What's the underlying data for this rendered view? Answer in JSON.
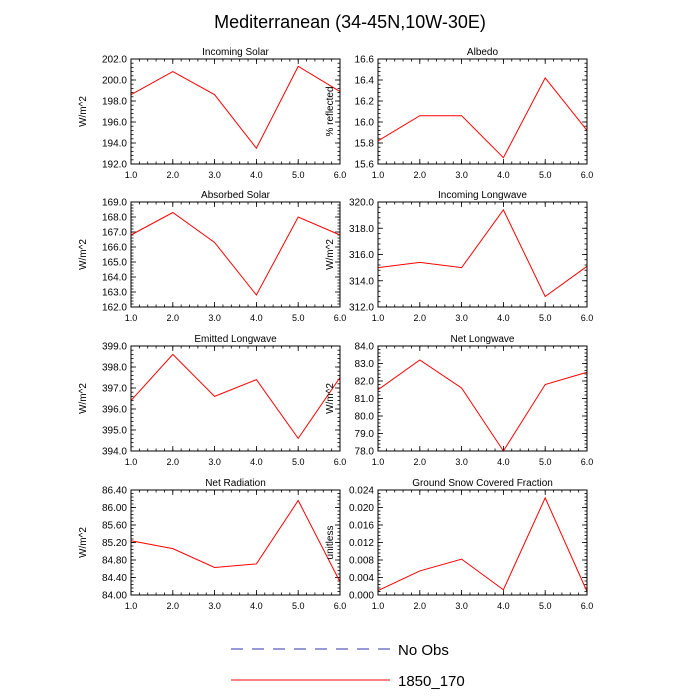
{
  "title": "Mediterranean (34-45N,10W-30E)",
  "colors": {
    "model_line": "#ff0000",
    "obs_line": "#3333aa",
    "axis": "#000000"
  },
  "legend": {
    "entries": [
      {
        "label": "No Obs",
        "style": "dashed",
        "color": "#3333aa"
      },
      {
        "label": "1850_170",
        "style": "solid",
        "color": "#ff0000"
      }
    ]
  },
  "chart_data": [
    {
      "type": "line",
      "title": "Incoming Solar",
      "ylabel": "W/m^2",
      "x": [
        1,
        2,
        3,
        4,
        5,
        6
      ],
      "xlim": [
        1,
        6
      ],
      "xticks": [
        "1.0",
        "2.0",
        "3.0",
        "4.0",
        "5.0",
        "6.0"
      ],
      "ylim": [
        192,
        202
      ],
      "yticks": [
        "192.0",
        "194.0",
        "196.0",
        "198.0",
        "200.0",
        "202.0"
      ],
      "yticks_values": [
        192,
        194,
        196,
        198,
        200,
        202
      ],
      "series": [
        {
          "name": "1850_170",
          "values": [
            198.6,
            200.8,
            198.6,
            193.5,
            201.3,
            198.9
          ]
        }
      ]
    },
    {
      "type": "line",
      "title": "Albedo",
      "ylabel": "% reflected",
      "x": [
        1,
        2,
        3,
        4,
        5,
        6
      ],
      "xlim": [
        1,
        6
      ],
      "xticks": [
        "1.0",
        "2.0",
        "3.0",
        "4.0",
        "5.0",
        "6.0"
      ],
      "ylim": [
        15.6,
        16.6
      ],
      "yticks": [
        "15.6",
        "15.8",
        "16.0",
        "16.2",
        "16.4",
        "16.6"
      ],
      "yticks_values": [
        15.6,
        15.8,
        16.0,
        16.2,
        16.4,
        16.6
      ],
      "series": [
        {
          "name": "1850_170",
          "values": [
            15.82,
            16.06,
            16.06,
            15.66,
            16.42,
            15.92
          ]
        }
      ]
    },
    {
      "type": "line",
      "title": "Absorbed Solar",
      "ylabel": "W/m^2",
      "x": [
        1,
        2,
        3,
        4,
        5,
        6
      ],
      "xlim": [
        1,
        6
      ],
      "xticks": [
        "1.0",
        "2.0",
        "3.0",
        "4.0",
        "5.0",
        "6.0"
      ],
      "ylim": [
        162,
        169
      ],
      "yticks": [
        "162.0",
        "163.0",
        "164.0",
        "165.0",
        "166.0",
        "167.0",
        "168.0",
        "169.0"
      ],
      "yticks_values": [
        162,
        163,
        164,
        165,
        166,
        167,
        168,
        169
      ],
      "series": [
        {
          "name": "1850_170",
          "values": [
            166.8,
            168.3,
            166.3,
            162.8,
            168.0,
            166.8
          ]
        }
      ]
    },
    {
      "type": "line",
      "title": "Incoming Longwave",
      "ylabel": "W/m^2",
      "x": [
        1,
        2,
        3,
        4,
        5,
        6
      ],
      "xlim": [
        1,
        6
      ],
      "xticks": [
        "1.0",
        "2.0",
        "3.0",
        "4.0",
        "5.0",
        "6.0"
      ],
      "ylim": [
        312,
        320
      ],
      "yticks": [
        "312.0",
        "314.0",
        "316.0",
        "318.0",
        "320.0"
      ],
      "yticks_values": [
        312,
        314,
        316,
        318,
        320
      ],
      "series": [
        {
          "name": "1850_170",
          "values": [
            315.0,
            315.4,
            315.0,
            319.4,
            312.8,
            315.1
          ]
        }
      ]
    },
    {
      "type": "line",
      "title": "Emitted Longwave",
      "ylabel": "W/m^2",
      "x": [
        1,
        2,
        3,
        4,
        5,
        6
      ],
      "xlim": [
        1,
        6
      ],
      "xticks": [
        "1.0",
        "2.0",
        "3.0",
        "4.0",
        "5.0",
        "6.0"
      ],
      "ylim": [
        394,
        399
      ],
      "yticks": [
        "394.0",
        "395.0",
        "396.0",
        "397.0",
        "398.0",
        "399.0"
      ],
      "yticks_values": [
        394,
        395,
        396,
        397,
        398,
        399
      ],
      "series": [
        {
          "name": "1850_170",
          "values": [
            396.4,
            398.6,
            396.6,
            397.4,
            394.6,
            397.5
          ]
        }
      ]
    },
    {
      "type": "line",
      "title": "Net Longwave",
      "ylabel": "W/m^2",
      "x": [
        1,
        2,
        3,
        4,
        5,
        6
      ],
      "xlim": [
        1,
        6
      ],
      "xticks": [
        "1.0",
        "2.0",
        "3.0",
        "4.0",
        "5.0",
        "6.0"
      ],
      "ylim": [
        78,
        84
      ],
      "yticks": [
        "78.0",
        "79.0",
        "80.0",
        "81.0",
        "82.0",
        "83.0",
        "84.0"
      ],
      "yticks_values": [
        78,
        79,
        80,
        81,
        82,
        83,
        84
      ],
      "series": [
        {
          "name": "1850_170",
          "values": [
            81.5,
            83.2,
            81.6,
            78.0,
            81.8,
            82.5
          ]
        }
      ]
    },
    {
      "type": "line",
      "title": "Net Radiation",
      "ylabel": "W/m^2",
      "x": [
        1,
        2,
        3,
        4,
        5,
        6
      ],
      "xlim": [
        1,
        6
      ],
      "xticks": [
        "1.0",
        "2.0",
        "3.0",
        "4.0",
        "5.0",
        "6.0"
      ],
      "ylim": [
        84.0,
        86.4
      ],
      "yticks": [
        "84.00",
        "84.40",
        "84.80",
        "85.20",
        "85.60",
        "86.00",
        "86.40"
      ],
      "yticks_values": [
        84.0,
        84.4,
        84.8,
        85.2,
        85.6,
        86.0,
        86.4
      ],
      "series": [
        {
          "name": "1850_170",
          "values": [
            85.24,
            85.06,
            84.63,
            84.71,
            86.16,
            84.3
          ]
        }
      ]
    },
    {
      "type": "line",
      "title": "Ground Snow Covered Fraction",
      "ylabel": "unitless",
      "x": [
        1,
        2,
        3,
        4,
        5,
        6
      ],
      "xlim": [
        1,
        6
      ],
      "xticks": [
        "1.0",
        "2.0",
        "3.0",
        "4.0",
        "5.0",
        "6.0"
      ],
      "ylim": [
        0,
        0.024
      ],
      "yticks": [
        "0.000",
        "0.004",
        "0.008",
        "0.012",
        "0.016",
        "0.020",
        "0.024"
      ],
      "yticks_values": [
        0,
        0.004,
        0.008,
        0.012,
        0.016,
        0.02,
        0.024
      ],
      "series": [
        {
          "name": "1850_170",
          "values": [
            0.001,
            0.0055,
            0.0082,
            0.0012,
            0.0222,
            0.0008
          ]
        }
      ]
    }
  ]
}
